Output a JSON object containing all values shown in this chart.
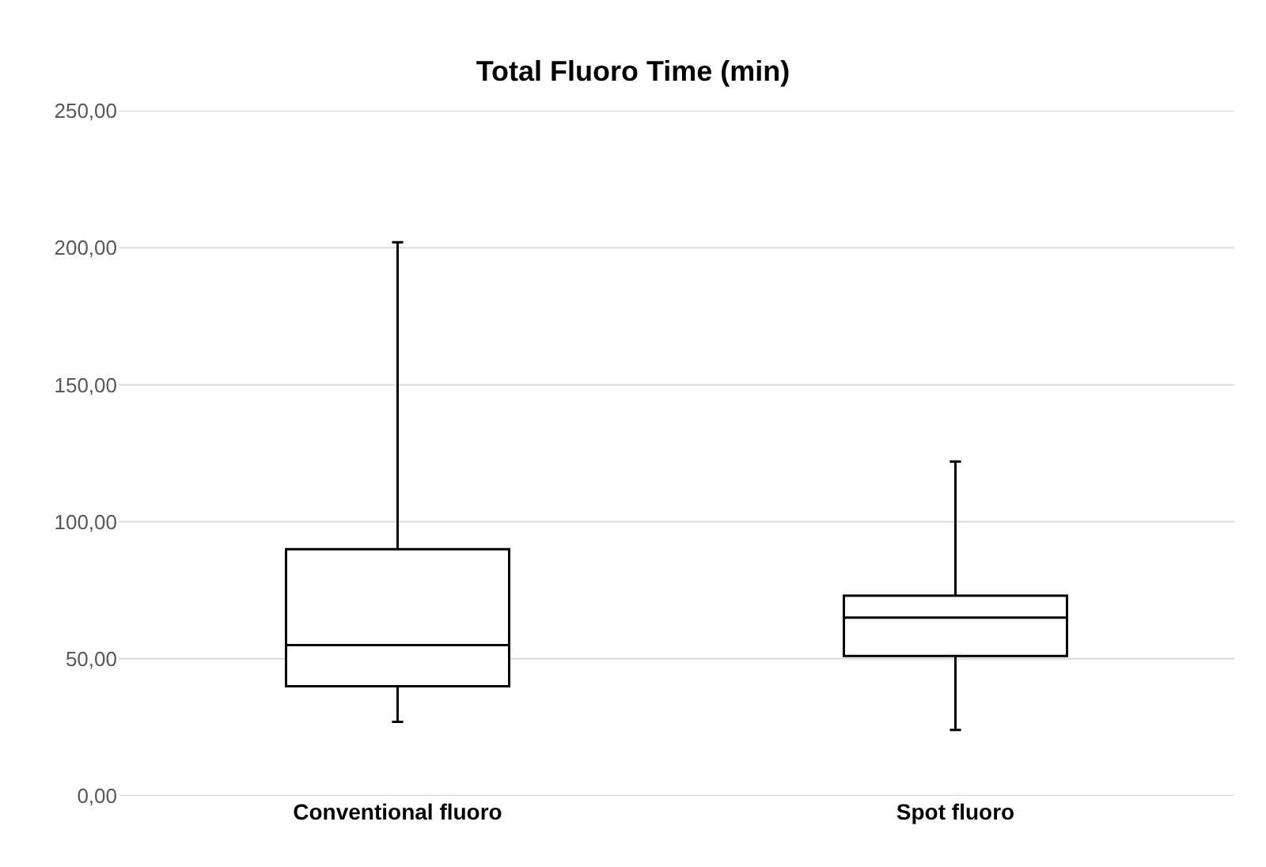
{
  "chart_data": {
    "type": "box",
    "title": "Total Fluoro Time (min)",
    "categories": [
      "Conventional fluoro",
      "Spot fluoro"
    ],
    "boxes": [
      {
        "low": 27,
        "q1": 40,
        "median": 55,
        "q3": 90,
        "high": 202
      },
      {
        "low": 24,
        "q1": 51,
        "median": 65,
        "q3": 73,
        "high": 122
      }
    ],
    "color": "#000000",
    "ylim": [
      0,
      250
    ],
    "yticks": [
      {
        "value": 0,
        "label": "0,00"
      },
      {
        "value": 50,
        "label": "50,00"
      },
      {
        "value": 100,
        "label": "100,00"
      },
      {
        "value": 150,
        "label": "150,00"
      },
      {
        "value": 200,
        "label": "200,00"
      },
      {
        "value": 250,
        "label": "250,00"
      }
    ],
    "grid": "y"
  }
}
